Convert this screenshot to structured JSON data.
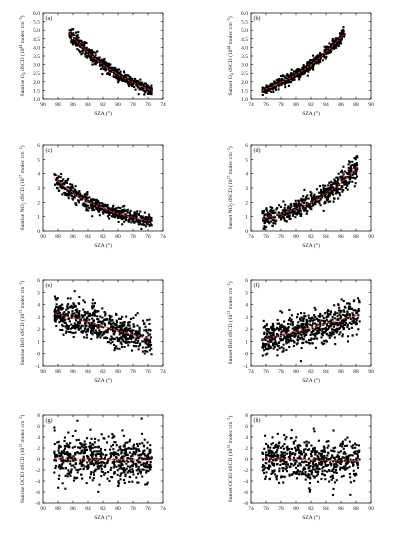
{
  "figure": {
    "point_color": "#000000",
    "fit_color": "#e3322b",
    "marker": "filled-square"
  },
  "chart_data": [
    {
      "type": "scatter",
      "panel_label": "(a)",
      "xlabel": "SZA (°)",
      "ylabel_parts": [
        "Sunrise O",
        "4",
        " dSCD (10",
        "44",
        " molec cm",
        "−5",
        ")"
      ],
      "xlim": [
        90,
        74
      ],
      "xticks": [
        90,
        88,
        86,
        84,
        82,
        80,
        78,
        76,
        74
      ],
      "ylim": [
        1.0,
        6.0
      ],
      "yticks": [
        "1.0",
        "1.5",
        "2.0",
        "2.5",
        "3.0",
        "3.5",
        "4.0",
        "4.5",
        "5.0",
        "5.5",
        "6.0"
      ],
      "x_range": [
        86.5,
        75.5
      ],
      "fit": {
        "form": "exp",
        "a": 1.5,
        "b": 0.1065,
        "x0": 75.5
      },
      "scatter_spread": 0.17,
      "n_points": 520
    },
    {
      "type": "scatter",
      "panel_label": "(b)",
      "xlabel": "SZA (°)",
      "ylabel_parts": [
        "Sunset O",
        "4",
        " dSCD (10",
        "44",
        " molec cm",
        "−5",
        ")"
      ],
      "xlim": [
        74,
        90
      ],
      "xticks": [
        74,
        76,
        78,
        80,
        82,
        84,
        86,
        88,
        90
      ],
      "ylim": [
        1.0,
        6.0
      ],
      "yticks": [
        "1.0",
        "1.5",
        "2.0",
        "2.5",
        "3.0",
        "3.5",
        "4.0",
        "4.5",
        "5.0",
        "5.5",
        "6.0"
      ],
      "x_range": [
        75.5,
        86.5
      ],
      "fit": {
        "form": "exp",
        "a": 1.5,
        "b": 0.1065,
        "x0": 75.5
      },
      "scatter_spread": 0.17,
      "n_points": 520
    },
    {
      "type": "scatter",
      "panel_label": "(c)",
      "xlabel": "SZA (°)",
      "ylabel_parts": [
        "Sunrise NO",
        "2",
        " dSCD (10",
        "17",
        " molec cm",
        "−2",
        ")"
      ],
      "xlim": [
        90,
        74
      ],
      "xticks": [
        90,
        88,
        86,
        84,
        82,
        80,
        78,
        76,
        74
      ],
      "ylim": [
        0,
        6
      ],
      "yticks": [
        "0",
        "1",
        "2",
        "3",
        "4",
        "5",
        "6"
      ],
      "x_range": [
        88.5,
        75.5
      ],
      "fit": {
        "form": "exp",
        "a": 0.68,
        "b": 0.1305,
        "x0": 75.5
      },
      "scatter_spread": 0.3,
      "n_points": 520
    },
    {
      "type": "scatter",
      "panel_label": "(d)",
      "xlabel": "SZA (°)",
      "ylabel_parts": [
        "Sunset NO",
        "2",
        " dSCD (10",
        "17",
        " molec cm",
        "−2",
        ")"
      ],
      "xlim": [
        74,
        90
      ],
      "xticks": [
        74,
        76,
        78,
        80,
        82,
        84,
        86,
        88,
        90
      ],
      "ylim": [
        0,
        6
      ],
      "yticks": [
        "0",
        "1",
        "2",
        "3",
        "4",
        "5",
        "6"
      ],
      "x_range": [
        75.5,
        88.2
      ],
      "fit": {
        "form": "exp",
        "a": 0.85,
        "b": 0.131,
        "x0": 75.5
      },
      "scatter_spread": 0.38,
      "n_points": 560
    },
    {
      "type": "scatter",
      "panel_label": "(e)",
      "xlabel": "SZA (°)",
      "ylabel_parts": [
        "Sunrise BrO dSCD (10",
        "13",
        " molec cm",
        "−2",
        ")"
      ],
      "xlim": [
        90,
        74
      ],
      "xticks": [
        90,
        88,
        86,
        84,
        82,
        80,
        78,
        76,
        74
      ],
      "ylim": [
        -1,
        6
      ],
      "yticks": [
        "-1",
        "0",
        "1",
        "2",
        "3",
        "4",
        "5",
        "6"
      ],
      "x_range": [
        88.5,
        75.5
      ],
      "fit": {
        "form": "linear",
        "a": 1.15,
        "b": 0.165,
        "x0": 75.5
      },
      "scatter_spread": 0.7,
      "n_points": 620
    },
    {
      "type": "scatter",
      "panel_label": "(f)",
      "xlabel": "SZA (°)",
      "ylabel_parts": [
        "Sunset BrO dSCD (10",
        "13",
        " molec cm",
        "−2",
        ")"
      ],
      "xlim": [
        74,
        90
      ],
      "xticks": [
        74,
        76,
        78,
        80,
        82,
        84,
        86,
        88,
        90
      ],
      "ylim": [
        -1,
        6
      ],
      "yticks": [
        "-1",
        "0",
        "1",
        "2",
        "3",
        "4",
        "5",
        "6"
      ],
      "x_range": [
        75.5,
        88.5
      ],
      "fit": {
        "form": "linear",
        "a": 1.1,
        "b": 0.16,
        "x0": 75.5
      },
      "scatter_spread": 0.7,
      "n_points": 620
    },
    {
      "type": "scatter",
      "panel_label": "(g)",
      "xlabel": "SZA (°)",
      "ylabel_parts": [
        "Sunrise OClO dSCD (10",
        "13",
        " molec cm",
        "−2",
        ")"
      ],
      "xlim": [
        90,
        74
      ],
      "xticks": [
        90,
        88,
        86,
        84,
        82,
        80,
        78,
        76,
        74
      ],
      "ylim": [
        -8,
        8
      ],
      "yticks": [
        "-8",
        "-6",
        "-4",
        "-2",
        "0",
        "2",
        "4",
        "6",
        "8"
      ],
      "x_range": [
        88.5,
        75.5
      ],
      "fit": {
        "form": "linear",
        "a": -0.2,
        "b": 0.02,
        "x0": 75.5
      },
      "scatter_spread": 1.9,
      "n_points": 600
    },
    {
      "type": "scatter",
      "panel_label": "(h)",
      "xlabel": "SZA (°)",
      "ylabel_parts": [
        "Sunset OClO dSCD (10",
        "13",
        " molec cm",
        "−2",
        ")"
      ],
      "xlim": [
        74,
        90
      ],
      "xticks": [
        74,
        76,
        78,
        80,
        82,
        84,
        86,
        88,
        90
      ],
      "ylim": [
        -8,
        8
      ],
      "yticks": [
        "-8",
        "-6",
        "-4",
        "-2",
        "0",
        "2",
        "4",
        "6",
        "8"
      ],
      "x_range": [
        75.5,
        88.5
      ],
      "fit": {
        "form": "linear",
        "a": 0.1,
        "b": -0.04,
        "x0": 75.5
      },
      "scatter_spread": 1.9,
      "n_points": 600
    }
  ]
}
